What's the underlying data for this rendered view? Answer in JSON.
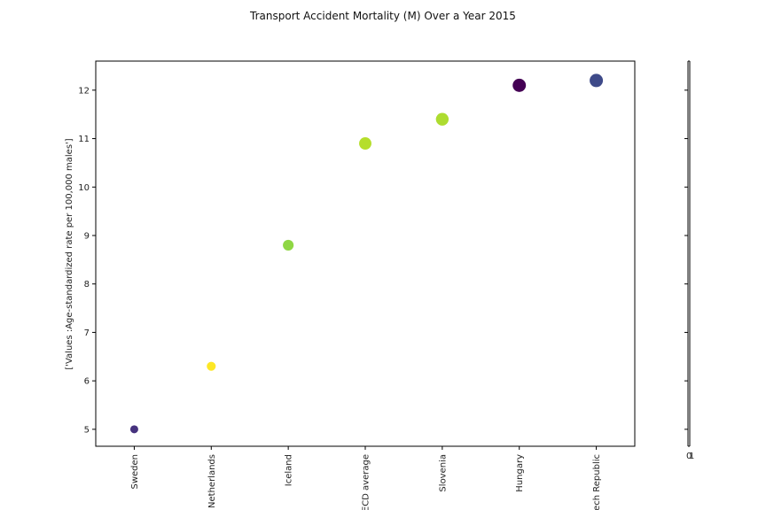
{
  "chart_data": {
    "type": "scatter",
    "title": "Transport Accident Mortality (M) Over a Year 2015",
    "ylabel": "['Values :Age-standardized rate per 100,000 males']",
    "xlabel": "",
    "categories": [
      "Sweden",
      "Netherlands",
      "Iceland",
      "OECD average",
      "Slovenia",
      "Hungary",
      "Czech Republic"
    ],
    "values": [
      5.0,
      6.3,
      8.8,
      10.9,
      11.4,
      12.1,
      12.2
    ],
    "point_colors": [
      "#46327e",
      "#fde725",
      "#8fd744",
      "#b5de2b",
      "#addc30",
      "#440154",
      "#3e4a89"
    ],
    "ylim": [
      4.65,
      12.6
    ],
    "yticks": [
      5,
      6,
      7,
      8,
      9,
      10,
      11,
      12
    ],
    "grid": false,
    "legend": "none",
    "colorbar_tick_labels": [
      "0",
      "1"
    ]
  }
}
